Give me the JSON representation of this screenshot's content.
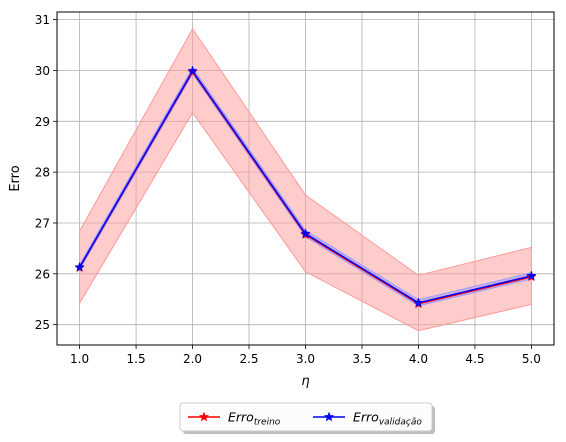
{
  "chart_data": {
    "type": "line",
    "xlabel": "η",
    "ylabel": "Erro",
    "xlim": [
      0.8,
      5.2
    ],
    "ylim": [
      24.6,
      31.15
    ],
    "xticks": [
      1.0,
      1.5,
      2.0,
      2.5,
      3.0,
      3.5,
      4.0,
      4.5,
      5.0
    ],
    "yticks": [
      25,
      26,
      27,
      28,
      29,
      30,
      31
    ],
    "xtick_labels": [
      "1.0",
      "1.5",
      "2.0",
      "2.5",
      "3.0",
      "3.5",
      "4.0",
      "4.5",
      "5.0"
    ],
    "ytick_labels": [
      "25",
      "26",
      "27",
      "28",
      "29",
      "30",
      "31"
    ],
    "grid": true,
    "legend_position": "bottom-center",
    "x": [
      1.0,
      2.0,
      3.0,
      4.0,
      5.0
    ],
    "series": [
      {
        "name_base": "Erro",
        "name_sub": "treino",
        "color": "#ff0000",
        "marker": "star",
        "values": [
          26.12,
          29.97,
          26.77,
          25.41,
          25.94
        ],
        "band_lower": [
          25.42,
          29.17,
          26.04,
          24.88,
          25.4
        ],
        "band_upper": [
          26.84,
          30.82,
          27.55,
          25.97,
          26.52
        ],
        "band_color": "#ff9999"
      },
      {
        "name_base": "Erro",
        "name_sub": "validação",
        "color": "#0000ff",
        "marker": "star",
        "values": [
          26.13,
          29.99,
          26.79,
          25.43,
          25.96
        ],
        "band_lower": [
          26.08,
          29.93,
          26.73,
          25.37,
          25.9
        ],
        "band_upper": [
          26.18,
          30.05,
          26.85,
          25.49,
          26.02
        ],
        "band_color": "#9999ff"
      }
    ]
  }
}
